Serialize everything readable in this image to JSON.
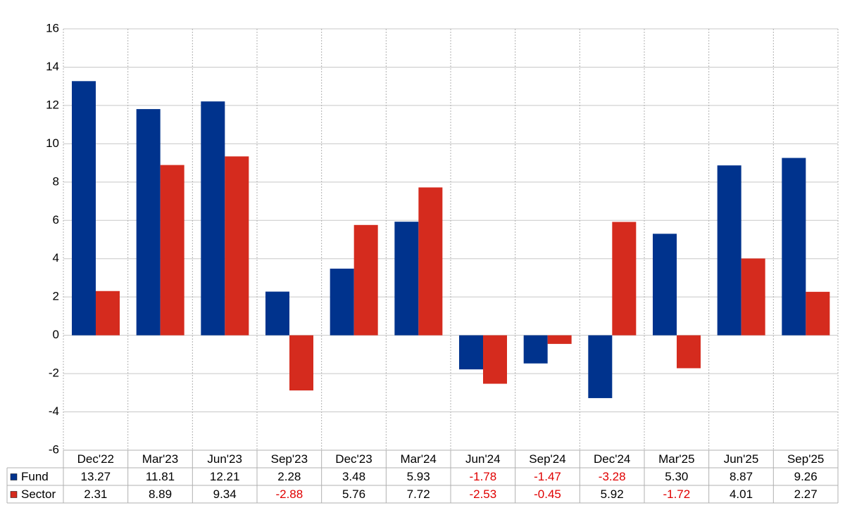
{
  "chart_data": {
    "type": "bar",
    "categories": [
      "Dec'22",
      "Mar'23",
      "Jun'23",
      "Sep'23",
      "Dec'23",
      "Mar'24",
      "Jun'24",
      "Sep'24",
      "Dec'24",
      "Mar'25",
      "Jun'25",
      "Sep'25"
    ],
    "series": [
      {
        "name": "Fund",
        "color": "#00338d",
        "values": [
          13.27,
          11.81,
          12.21,
          2.28,
          3.48,
          5.93,
          -1.78,
          -1.47,
          -3.28,
          5.3,
          8.87,
          9.26
        ],
        "value_labels": [
          "13.27",
          "11.81",
          "12.21",
          "2.28",
          "3.48",
          "5.93",
          "-1.78",
          "-1.47",
          "-3.28",
          "5.30",
          "8.87",
          "9.26"
        ]
      },
      {
        "name": "Sector",
        "color": "#d52b1e",
        "values": [
          2.31,
          8.89,
          9.34,
          -2.88,
          5.76,
          7.72,
          -2.53,
          -0.45,
          5.92,
          -1.72,
          4.01,
          2.27
        ],
        "value_labels": [
          "2.31",
          "8.89",
          "9.34",
          "-2.88",
          "5.76",
          "7.72",
          "-2.53",
          "-0.45",
          "5.92",
          "-1.72",
          "4.01",
          "2.27"
        ]
      }
    ],
    "ylim": [
      -6,
      16
    ],
    "yticks": [
      -6,
      -4,
      -2,
      0,
      2,
      4,
      6,
      8,
      10,
      12,
      14,
      16
    ],
    "grid": true
  }
}
